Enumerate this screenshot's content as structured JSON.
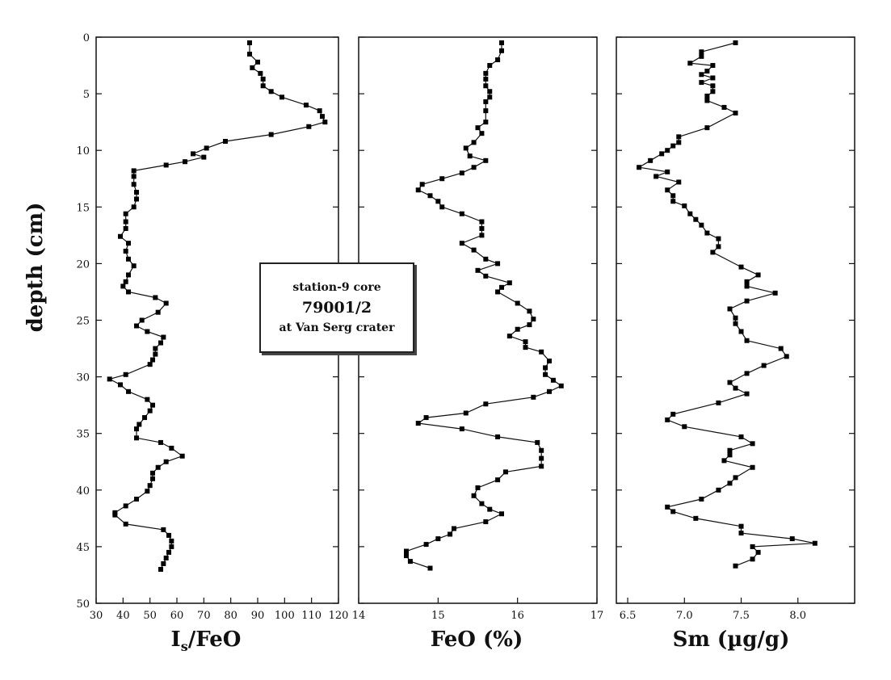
{
  "chart_data": [
    {
      "type": "line",
      "ylabel": "depth (cm)",
      "xlabel_main": "I",
      "xlabel_sub": "s",
      "xlabel_rest": "/FeO",
      "ylim": [
        50,
        0
      ],
      "xlim": [
        30,
        120
      ],
      "x_ticks": [
        30,
        40,
        50,
        60,
        70,
        80,
        90,
        100,
        110,
        120
      ],
      "y_ticks": [
        0,
        5,
        10,
        15,
        20,
        25,
        30,
        35,
        40,
        45,
        50
      ],
      "series": [
        {
          "x": [
            87,
            87,
            90,
            88,
            91,
            92,
            92,
            95,
            99,
            108,
            113,
            114,
            115,
            109,
            95,
            78,
            71,
            66,
            70,
            63,
            56,
            44,
            44,
            44,
            45,
            45,
            44,
            41,
            41,
            41,
            39,
            42,
            41,
            42,
            44,
            42,
            41,
            40,
            42,
            52,
            56,
            53,
            47,
            45,
            49,
            55,
            54,
            52,
            52,
            51,
            50,
            41,
            35,
            39,
            42,
            49,
            51,
            50,
            48,
            46,
            45,
            45,
            54,
            58,
            62,
            56,
            53,
            51,
            51,
            50,
            49,
            45,
            41,
            37,
            37,
            41,
            55,
            57,
            58,
            58,
            57,
            56,
            55,
            54
          ],
          "y": [
            0.5,
            1.5,
            2.2,
            2.7,
            3.2,
            3.7,
            4.3,
            4.8,
            5.3,
            6.0,
            6.5,
            7.0,
            7.5,
            7.9,
            8.6,
            9.2,
            9.8,
            10.3,
            10.6,
            11.0,
            11.3,
            11.8,
            12.3,
            13.0,
            13.7,
            14.3,
            15.0,
            15.6,
            16.3,
            16.9,
            17.6,
            18.2,
            18.9,
            19.6,
            20.2,
            21.0,
            21.6,
            22.0,
            22.5,
            23.0,
            23.5,
            24.3,
            25.0,
            25.5,
            26.0,
            26.5,
            27.0,
            27.5,
            28.0,
            28.5,
            28.9,
            29.8,
            30.2,
            30.7,
            31.3,
            32.0,
            32.5,
            33.0,
            33.6,
            34.2,
            34.6,
            35.4,
            35.8,
            36.3,
            37.0,
            37.5,
            38.0,
            38.5,
            39.0,
            39.6,
            40.1,
            40.8,
            41.4,
            42.0,
            42.2,
            43.0,
            43.5,
            44.0,
            44.5,
            45.0,
            45.5,
            46.0,
            46.5,
            47.0
          ]
        }
      ]
    },
    {
      "type": "line",
      "xlabel": "FeO  (%)",
      "ylim": [
        50,
        0
      ],
      "xlim": [
        14,
        17
      ],
      "x_ticks": [
        14,
        15,
        16,
        17
      ],
      "series": [
        {
          "x": [
            15.8,
            15.8,
            15.75,
            15.65,
            15.6,
            15.6,
            15.6,
            15.65,
            15.65,
            15.6,
            15.6,
            15.6,
            15.5,
            15.55,
            15.45,
            15.35,
            15.4,
            15.6,
            15.45,
            15.3,
            15.05,
            14.8,
            14.75,
            14.9,
            15.0,
            15.05,
            15.3,
            15.55,
            15.55,
            15.55,
            15.3,
            15.45,
            15.6,
            15.75,
            15.5,
            15.6,
            15.9,
            15.8,
            15.75,
            16.0,
            16.15,
            16.2,
            16.15,
            16.0,
            15.9,
            16.1,
            16.1,
            16.3,
            16.4,
            16.35,
            16.35,
            16.45,
            16.55,
            16.4,
            16.2,
            15.6,
            15.35,
            14.85,
            14.75,
            15.3,
            15.75,
            16.25,
            16.3,
            16.3,
            16.3,
            15.85,
            15.75,
            15.5,
            15.45,
            15.55,
            15.65,
            15.8,
            15.6,
            15.2,
            15.15,
            15.0,
            14.85,
            14.6,
            14.6,
            14.65,
            14.9
          ],
          "y": [
            0.5,
            1.2,
            2.0,
            2.5,
            3.2,
            3.7,
            4.3,
            4.8,
            5.3,
            5.7,
            6.5,
            7.5,
            8.0,
            8.5,
            9.3,
            9.8,
            10.5,
            10.9,
            11.5,
            12.0,
            12.5,
            13.0,
            13.5,
            14.0,
            14.5,
            15.0,
            15.6,
            16.3,
            16.9,
            17.5,
            18.2,
            18.8,
            19.6,
            20.0,
            20.6,
            21.1,
            21.7,
            22.1,
            22.5,
            23.5,
            24.2,
            24.9,
            25.4,
            25.8,
            26.4,
            26.9,
            27.4,
            27.8,
            28.6,
            29.2,
            29.8,
            30.3,
            30.8,
            31.3,
            31.8,
            32.4,
            33.2,
            33.6,
            34.1,
            34.6,
            35.3,
            35.8,
            36.5,
            37.2,
            37.9,
            38.4,
            39.1,
            39.8,
            40.5,
            41.2,
            41.7,
            42.1,
            42.8,
            43.4,
            43.9,
            44.3,
            44.8,
            45.4,
            45.8,
            46.3,
            46.9
          ]
        }
      ]
    },
    {
      "type": "line",
      "xlabel": "Sm  (µg/g)",
      "ylim": [
        50,
        0
      ],
      "xlim": [
        6.4,
        8.5
      ],
      "x_ticks": [
        6.5,
        7.0,
        7.5,
        8.0
      ],
      "x_tick_labels": [
        "6.5",
        "7.0",
        "7.5",
        "8.0"
      ],
      "series": [
        {
          "x": [
            7.45,
            7.15,
            7.15,
            7.05,
            7.25,
            7.2,
            7.15,
            7.25,
            7.15,
            7.25,
            7.25,
            7.2,
            7.2,
            7.35,
            7.45,
            7.2,
            6.95,
            6.95,
            6.9,
            6.85,
            6.8,
            6.7,
            6.6,
            6.85,
            6.75,
            6.95,
            6.85,
            6.9,
            6.9,
            7.0,
            7.05,
            7.1,
            7.15,
            7.2,
            7.3,
            7.3,
            7.25,
            7.5,
            7.65,
            7.55,
            7.55,
            7.8,
            7.55,
            7.4,
            7.45,
            7.45,
            7.5,
            7.55,
            7.85,
            7.9,
            7.7,
            7.55,
            7.4,
            7.45,
            7.55,
            7.3,
            6.9,
            6.85,
            7.0,
            7.5,
            7.6,
            7.4,
            7.4,
            7.35,
            7.6,
            7.45,
            7.4,
            7.3,
            7.15,
            6.85,
            6.9,
            7.1,
            7.5,
            7.5,
            7.95,
            8.15,
            7.6,
            7.65,
            7.6,
            7.45
          ],
          "y": [
            0.5,
            1.3,
            1.7,
            2.3,
            2.5,
            3.0,
            3.3,
            3.6,
            4.0,
            4.3,
            4.8,
            5.2,
            5.6,
            6.2,
            6.7,
            8.0,
            8.8,
            9.3,
            9.6,
            10.0,
            10.3,
            10.9,
            11.5,
            11.9,
            12.3,
            12.8,
            13.5,
            14.0,
            14.5,
            14.9,
            15.6,
            16.1,
            16.6,
            17.3,
            17.8,
            18.5,
            19.0,
            20.3,
            21.0,
            21.6,
            22.0,
            22.6,
            23.3,
            24.0,
            24.8,
            25.3,
            26.0,
            26.8,
            27.5,
            28.2,
            29.0,
            29.7,
            30.5,
            31.0,
            31.5,
            32.3,
            33.3,
            33.8,
            34.4,
            35.3,
            35.9,
            36.5,
            36.9,
            37.4,
            38.0,
            38.9,
            39.4,
            40.0,
            40.8,
            41.5,
            41.9,
            42.5,
            43.2,
            43.8,
            44.3,
            44.7,
            45.0,
            45.5,
            46.1,
            46.7
          ]
        }
      ]
    }
  ],
  "annotation": {
    "line1": "station-9 core",
    "line2": "79001/2",
    "line3": "at Van Serg crater"
  },
  "colors": {
    "line": "#111111",
    "marker": "#000000",
    "frame": "#111111"
  }
}
